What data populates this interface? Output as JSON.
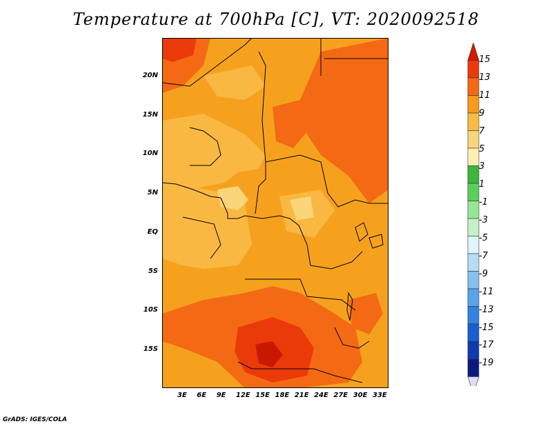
{
  "title": "Temperature at 700hPa [C], VT: 2020092518",
  "credit": "GrADS: IGES/COLA",
  "y_ticks": [
    "20N",
    "15N",
    "10N",
    "5N",
    "EQ",
    "5S",
    "10S",
    "15S"
  ],
  "x_ticks": [
    "3E",
    "6E",
    "9E",
    "12E",
    "15E",
    "18E",
    "21E",
    "24E",
    "27E",
    "30E",
    "33E"
  ],
  "colorbar": {
    "labels": [
      "15",
      "13",
      "11",
      "9",
      "7",
      "5",
      "3",
      "1",
      "-1",
      "-3",
      "-5",
      "-7",
      "-9",
      "-11",
      "-13",
      "-15",
      "-17",
      "-19"
    ],
    "colors": [
      "#d11a00",
      "#ea3a0a",
      "#f46a14",
      "#f89a1e",
      "#f9bb43",
      "#fbd57a",
      "#fdf0b4",
      "#3cb63c",
      "#5ad05a",
      "#96e696",
      "#c8f0c8",
      "#dff4fb",
      "#b7dcf4",
      "#86bff0",
      "#5aa2ec",
      "#3282e0",
      "#1a5ed0",
      "#0f3ab0",
      "#0a1a80",
      "#ddddf6"
    ]
  }
}
